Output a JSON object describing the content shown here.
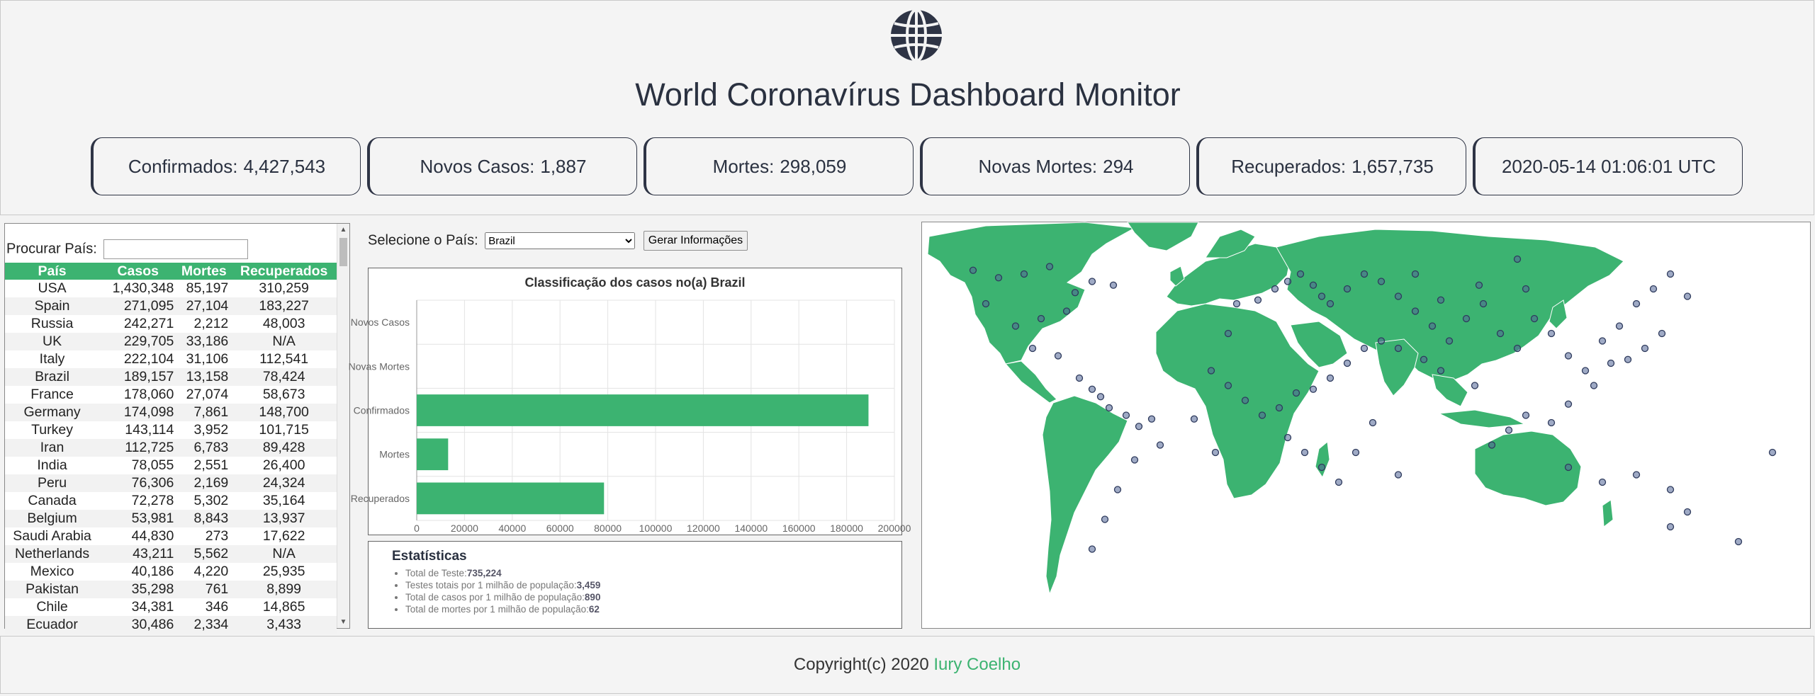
{
  "header": {
    "title": "World Coronavírus Dashboard Monitor",
    "icon": "globe-icon",
    "cards": [
      {
        "label": "Confirmados:",
        "value": "4,427,543"
      },
      {
        "label": "Novos Casos:",
        "value": "1,887"
      },
      {
        "label": "Mortes:",
        "value": "298,059"
      },
      {
        "label": "Novas Mortes:",
        "value": "294"
      },
      {
        "label": "Recuperados:",
        "value": "1,657,735"
      },
      {
        "label": "",
        "value": "2020-05-14 01:06:01 UTC"
      }
    ]
  },
  "country_table": {
    "search_label": "Procurar País:",
    "search_value": "",
    "columns": [
      "País",
      "Casos",
      "Mortes",
      "Recuperados"
    ],
    "rows": [
      [
        "USA",
        "1,430,348",
        "85,197",
        "310,259"
      ],
      [
        "Spain",
        "271,095",
        "27,104",
        "183,227"
      ],
      [
        "Russia",
        "242,271",
        "2,212",
        "48,003"
      ],
      [
        "UK",
        "229,705",
        "33,186",
        "N/A"
      ],
      [
        "Italy",
        "222,104",
        "31,106",
        "112,541"
      ],
      [
        "Brazil",
        "189,157",
        "13,158",
        "78,424"
      ],
      [
        "France",
        "178,060",
        "27,074",
        "58,673"
      ],
      [
        "Germany",
        "174,098",
        "7,861",
        "148,700"
      ],
      [
        "Turkey",
        "143,114",
        "3,952",
        "101,715"
      ],
      [
        "Iran",
        "112,725",
        "6,783",
        "89,428"
      ],
      [
        "India",
        "78,055",
        "2,551",
        "26,400"
      ],
      [
        "Peru",
        "76,306",
        "2,169",
        "24,324"
      ],
      [
        "Canada",
        "72,278",
        "5,302",
        "35,164"
      ],
      [
        "Belgium",
        "53,981",
        "8,843",
        "13,937"
      ],
      [
        "Saudi Arabia",
        "44,830",
        "273",
        "17,622"
      ],
      [
        "Netherlands",
        "43,211",
        "5,562",
        "N/A"
      ],
      [
        "Mexico",
        "40,186",
        "4,220",
        "25,935"
      ],
      [
        "Pakistan",
        "35,298",
        "761",
        "8,899"
      ],
      [
        "Chile",
        "34,381",
        "346",
        "14,865"
      ],
      [
        "Ecuador",
        "30,486",
        "2,334",
        "3,433"
      ]
    ]
  },
  "country_selector": {
    "label": "Selecione o País:",
    "selected": "Brazil",
    "button_label": "Gerar Informações"
  },
  "chart_data": {
    "type": "bar",
    "orientation": "horizontal",
    "title": "Classificação dos casos no(a) Brazil",
    "categories": [
      "Novos Casos",
      "Novas Mortes",
      "Confirmados",
      "Mortes",
      "Recuperados"
    ],
    "values": [
      0,
      0,
      189157,
      13158,
      78424
    ],
    "xlim": [
      0,
      200000
    ],
    "xticks": [
      "0",
      "20000",
      "40000",
      "60000",
      "80000",
      "100000",
      "120000",
      "140000",
      "160000",
      "180000",
      "200000"
    ],
    "grid": true,
    "color": "#3cb371"
  },
  "statistics": {
    "title": "Estatísticas",
    "items": [
      {
        "label": "Total de Teste:",
        "value": "735,224"
      },
      {
        "label": "Testes totais por 1 milhão de população:",
        "value": "3,459"
      },
      {
        "label": "Total de casos por 1 milhão de população:",
        "value": "890"
      },
      {
        "label": "Total de mortes por 1 milhão de população:",
        "value": "62"
      }
    ]
  },
  "map": {
    "land_color": "#3cb371",
    "marker_color": "#2e3a5c"
  },
  "footer": {
    "copyright": "Copyright(c) 2020",
    "author": "Iury Coelho"
  }
}
